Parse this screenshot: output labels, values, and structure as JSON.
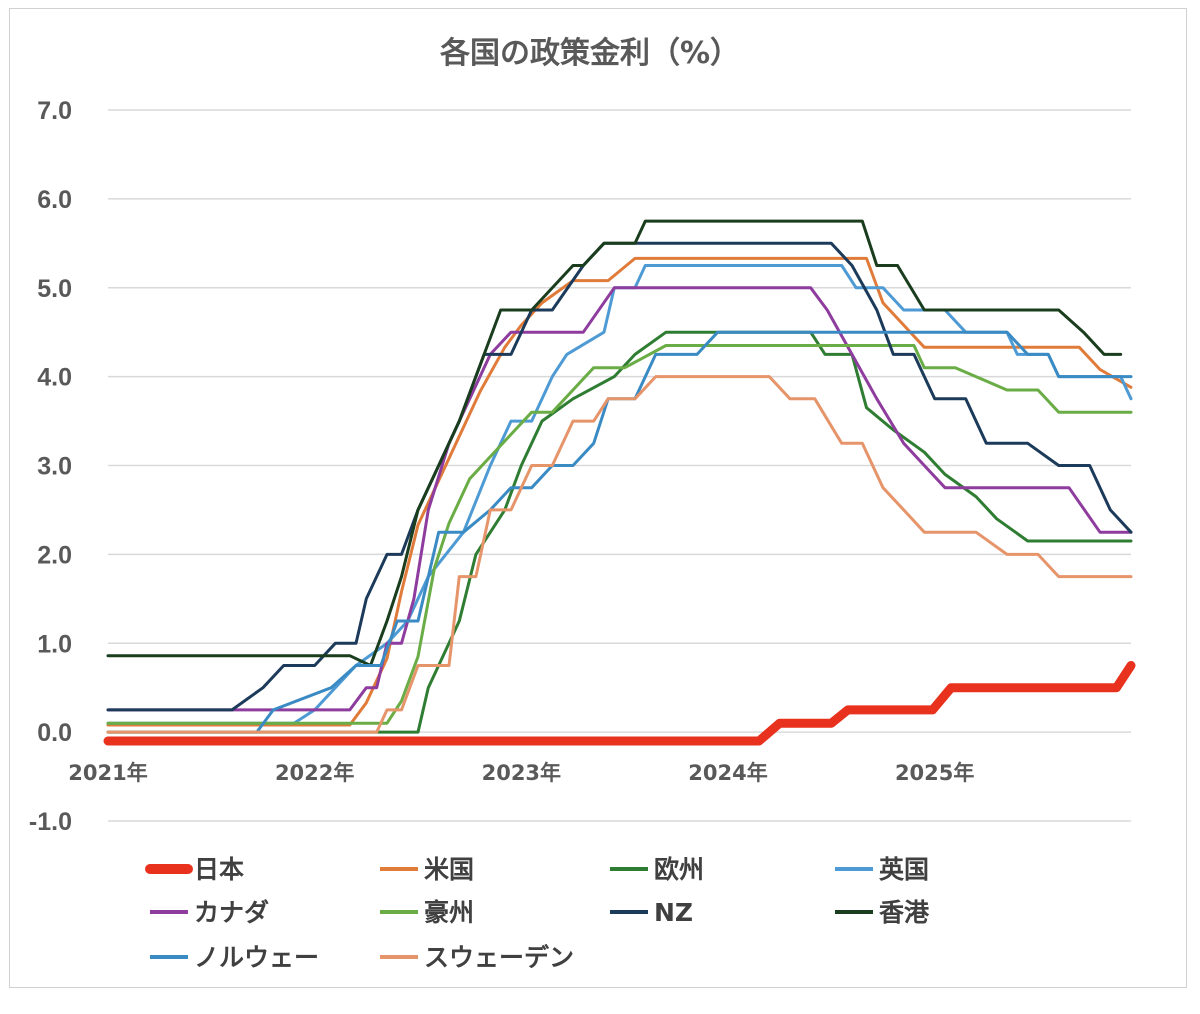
{
  "chart_data": {
    "type": "line",
    "title": "各国の政策金利（%）",
    "xlabel": "",
    "ylabel": "",
    "ylim": [
      -1.0,
      7.0
    ],
    "yticks": [
      "7.0",
      "6.0",
      "5.0",
      "4.0",
      "3.0",
      "2.0",
      "1.0",
      "0.0",
      "-1.0"
    ],
    "xticks": [
      "2021年",
      "2022年",
      "2023年",
      "2024年",
      "2025年"
    ],
    "xlim": [
      2021.0,
      2025.95
    ],
    "grid": true,
    "legend_position": "bottom",
    "series": [
      {
        "name": "日本",
        "color": "#e8321e",
        "width": 9,
        "points": [
          [
            2021.0,
            -0.1
          ],
          [
            2024.15,
            -0.1
          ],
          [
            2024.25,
            0.1
          ],
          [
            2024.5,
            0.1
          ],
          [
            2024.58,
            0.25
          ],
          [
            2024.99,
            0.25
          ],
          [
            2025.08,
            0.5
          ],
          [
            2025.88,
            0.5
          ],
          [
            2025.95,
            0.75
          ]
        ]
      },
      {
        "name": "米国",
        "color": "#e07b3a",
        "width": 3,
        "points": [
          [
            2021.0,
            0.08
          ],
          [
            2022.17,
            0.08
          ],
          [
            2022.25,
            0.33
          ],
          [
            2022.35,
            0.83
          ],
          [
            2022.42,
            1.58
          ],
          [
            2022.5,
            2.33
          ],
          [
            2022.65,
            3.08
          ],
          [
            2022.8,
            3.83
          ],
          [
            2022.92,
            4.33
          ],
          [
            2023.0,
            4.58
          ],
          [
            2023.1,
            4.83
          ],
          [
            2023.25,
            5.08
          ],
          [
            2023.42,
            5.08
          ],
          [
            2023.55,
            5.33
          ],
          [
            2024.67,
            5.33
          ],
          [
            2024.75,
            4.83
          ],
          [
            2024.85,
            4.58
          ],
          [
            2024.95,
            4.33
          ],
          [
            2025.7,
            4.33
          ],
          [
            2025.8,
            4.08
          ],
          [
            2025.95,
            3.88
          ]
        ]
      },
      {
        "name": "欧州",
        "color": "#2e7d32",
        "width": 3,
        "points": [
          [
            2021.0,
            0.0
          ],
          [
            2022.25,
            0.0
          ],
          [
            2022.5,
            0.0
          ],
          [
            2022.55,
            0.5
          ],
          [
            2022.7,
            1.25
          ],
          [
            2022.78,
            2.0
          ],
          [
            2022.92,
            2.5
          ],
          [
            2023.0,
            3.0
          ],
          [
            2023.1,
            3.5
          ],
          [
            2023.25,
            3.75
          ],
          [
            2023.45,
            4.0
          ],
          [
            2023.55,
            4.25
          ],
          [
            2023.7,
            4.5
          ],
          [
            2024.4,
            4.5
          ],
          [
            2024.47,
            4.25
          ],
          [
            2024.6,
            4.25
          ],
          [
            2024.67,
            3.65
          ],
          [
            2024.8,
            3.4
          ],
          [
            2024.95,
            3.15
          ],
          [
            2025.05,
            2.9
          ],
          [
            2025.2,
            2.65
          ],
          [
            2025.3,
            2.4
          ],
          [
            2025.45,
            2.15
          ],
          [
            2025.95,
            2.15
          ]
        ]
      },
      {
        "name": "英国",
        "color": "#4e9ad4",
        "width": 3,
        "points": [
          [
            2021.0,
            0.1
          ],
          [
            2021.9,
            0.1
          ],
          [
            2022.0,
            0.25
          ],
          [
            2022.1,
            0.5
          ],
          [
            2022.2,
            0.75
          ],
          [
            2022.35,
            1.0
          ],
          [
            2022.45,
            1.25
          ],
          [
            2022.55,
            1.75
          ],
          [
            2022.72,
            2.25
          ],
          [
            2022.85,
            3.0
          ],
          [
            2022.95,
            3.5
          ],
          [
            2023.05,
            3.5
          ],
          [
            2023.15,
            4.0
          ],
          [
            2023.22,
            4.25
          ],
          [
            2023.4,
            4.5
          ],
          [
            2023.45,
            5.0
          ],
          [
            2023.55,
            5.0
          ],
          [
            2023.6,
            5.25
          ],
          [
            2024.55,
            5.25
          ],
          [
            2024.62,
            5.0
          ],
          [
            2024.75,
            5.0
          ],
          [
            2024.85,
            4.75
          ],
          [
            2025.05,
            4.75
          ],
          [
            2025.15,
            4.5
          ],
          [
            2025.35,
            4.5
          ],
          [
            2025.4,
            4.25
          ],
          [
            2025.55,
            4.25
          ],
          [
            2025.6,
            4.0
          ],
          [
            2025.9,
            4.0
          ],
          [
            2025.95,
            3.75
          ]
        ]
      },
      {
        "name": "カナダ",
        "color": "#8e3c9e",
        "width": 3,
        "points": [
          [
            2021.0,
            0.25
          ],
          [
            2022.17,
            0.25
          ],
          [
            2022.25,
            0.5
          ],
          [
            2022.3,
            0.5
          ],
          [
            2022.35,
            1.0
          ],
          [
            2022.42,
            1.0
          ],
          [
            2022.48,
            1.5
          ],
          [
            2022.55,
            2.5
          ],
          [
            2022.65,
            3.25
          ],
          [
            2022.75,
            3.75
          ],
          [
            2022.85,
            4.25
          ],
          [
            2022.95,
            4.5
          ],
          [
            2023.3,
            4.5
          ],
          [
            2023.45,
            5.0
          ],
          [
            2024.4,
            5.0
          ],
          [
            2024.48,
            4.75
          ],
          [
            2024.6,
            4.25
          ],
          [
            2024.72,
            3.75
          ],
          [
            2024.85,
            3.25
          ],
          [
            2024.95,
            3.0
          ],
          [
            2025.05,
            2.75
          ],
          [
            2025.65,
            2.75
          ],
          [
            2025.8,
            2.25
          ],
          [
            2025.95,
            2.25
          ]
        ]
      },
      {
        "name": "豪州",
        "color": "#6aac45",
        "width": 3,
        "points": [
          [
            2021.0,
            0.1
          ],
          [
            2022.35,
            0.1
          ],
          [
            2022.42,
            0.35
          ],
          [
            2022.5,
            0.85
          ],
          [
            2022.58,
            1.85
          ],
          [
            2022.65,
            2.35
          ],
          [
            2022.75,
            2.85
          ],
          [
            2022.85,
            3.1
          ],
          [
            2022.95,
            3.35
          ],
          [
            2023.05,
            3.6
          ],
          [
            2023.15,
            3.6
          ],
          [
            2023.35,
            4.1
          ],
          [
            2023.5,
            4.1
          ],
          [
            2023.7,
            4.35
          ],
          [
            2024.9,
            4.35
          ],
          [
            2024.95,
            4.1
          ],
          [
            2025.1,
            4.1
          ],
          [
            2025.35,
            3.85
          ],
          [
            2025.5,
            3.85
          ],
          [
            2025.6,
            3.6
          ],
          [
            2025.95,
            3.6
          ]
        ]
      },
      {
        "name": "NZ",
        "color": "#1c3a5a",
        "width": 3,
        "points": [
          [
            2021.0,
            0.25
          ],
          [
            2021.6,
            0.25
          ],
          [
            2021.75,
            0.5
          ],
          [
            2021.85,
            0.75
          ],
          [
            2022.0,
            0.75
          ],
          [
            2022.1,
            1.0
          ],
          [
            2022.2,
            1.0
          ],
          [
            2022.25,
            1.5
          ],
          [
            2022.35,
            2.0
          ],
          [
            2022.42,
            2.0
          ],
          [
            2022.5,
            2.5
          ],
          [
            2022.6,
            3.0
          ],
          [
            2022.7,
            3.5
          ],
          [
            2022.82,
            4.25
          ],
          [
            2022.95,
            4.25
          ],
          [
            2023.05,
            4.75
          ],
          [
            2023.15,
            4.75
          ],
          [
            2023.3,
            5.25
          ],
          [
            2023.4,
            5.5
          ],
          [
            2024.5,
            5.5
          ],
          [
            2024.6,
            5.25
          ],
          [
            2024.72,
            4.75
          ],
          [
            2024.8,
            4.25
          ],
          [
            2024.9,
            4.25
          ],
          [
            2025.0,
            3.75
          ],
          [
            2025.15,
            3.75
          ],
          [
            2025.25,
            3.25
          ],
          [
            2025.45,
            3.25
          ],
          [
            2025.6,
            3.0
          ],
          [
            2025.75,
            3.0
          ],
          [
            2025.85,
            2.5
          ],
          [
            2025.95,
            2.25
          ]
        ]
      },
      {
        "name": "香港",
        "color": "#1a3d1e",
        "width": 3,
        "points": [
          [
            2021.0,
            0.86
          ],
          [
            2022.17,
            0.86
          ],
          [
            2022.27,
            0.75
          ],
          [
            2022.35,
            1.25
          ],
          [
            2022.42,
            1.75
          ],
          [
            2022.5,
            2.5
          ],
          [
            2022.6,
            3.0
          ],
          [
            2022.7,
            3.5
          ],
          [
            2022.82,
            4.25
          ],
          [
            2022.9,
            4.75
          ],
          [
            2023.05,
            4.75
          ],
          [
            2023.25,
            5.25
          ],
          [
            2023.3,
            5.25
          ],
          [
            2023.4,
            5.5
          ],
          [
            2023.55,
            5.5
          ],
          [
            2023.6,
            5.75
          ],
          [
            2024.65,
            5.75
          ],
          [
            2024.72,
            5.25
          ],
          [
            2024.82,
            5.25
          ],
          [
            2024.95,
            4.75
          ],
          [
            2025.6,
            4.75
          ],
          [
            2025.72,
            4.5
          ],
          [
            2025.82,
            4.25
          ],
          [
            2025.9,
            4.25
          ]
        ]
      },
      {
        "name": "ノルウェー",
        "color": "#3a8ac4",
        "width": 3,
        "points": [
          [
            2021.0,
            0.0
          ],
          [
            2021.72,
            0.0
          ],
          [
            2021.8,
            0.25
          ],
          [
            2022.08,
            0.5
          ],
          [
            2022.2,
            0.75
          ],
          [
            2022.32,
            0.75
          ],
          [
            2022.4,
            1.25
          ],
          [
            2022.5,
            1.25
          ],
          [
            2022.6,
            2.25
          ],
          [
            2022.72,
            2.25
          ],
          [
            2022.85,
            2.5
          ],
          [
            2022.95,
            2.75
          ],
          [
            2023.05,
            2.75
          ],
          [
            2023.15,
            3.0
          ],
          [
            2023.25,
            3.0
          ],
          [
            2023.35,
            3.25
          ],
          [
            2023.42,
            3.75
          ],
          [
            2023.55,
            3.75
          ],
          [
            2023.65,
            4.25
          ],
          [
            2023.85,
            4.25
          ],
          [
            2023.95,
            4.5
          ],
          [
            2025.35,
            4.5
          ],
          [
            2025.45,
            4.25
          ],
          [
            2025.55,
            4.25
          ],
          [
            2025.6,
            4.0
          ],
          [
            2025.8,
            4.0
          ],
          [
            2025.95,
            4.0
          ]
        ]
      },
      {
        "name": "スウェーデン",
        "color": "#e6946a",
        "width": 3,
        "points": [
          [
            2021.0,
            0.0
          ],
          [
            2022.3,
            0.0
          ],
          [
            2022.35,
            0.25
          ],
          [
            2022.42,
            0.25
          ],
          [
            2022.5,
            0.75
          ],
          [
            2022.65,
            0.75
          ],
          [
            2022.7,
            1.75
          ],
          [
            2022.78,
            1.75
          ],
          [
            2022.85,
            2.5
          ],
          [
            2022.95,
            2.5
          ],
          [
            2023.05,
            3.0
          ],
          [
            2023.15,
            3.0
          ],
          [
            2023.25,
            3.5
          ],
          [
            2023.35,
            3.5
          ],
          [
            2023.42,
            3.75
          ],
          [
            2023.55,
            3.75
          ],
          [
            2023.65,
            4.0
          ],
          [
            2024.2,
            4.0
          ],
          [
            2024.3,
            3.75
          ],
          [
            2024.42,
            3.75
          ],
          [
            2024.55,
            3.25
          ],
          [
            2024.65,
            3.25
          ],
          [
            2024.75,
            2.75
          ],
          [
            2024.85,
            2.5
          ],
          [
            2024.95,
            2.25
          ],
          [
            2025.2,
            2.25
          ],
          [
            2025.35,
            2.0
          ],
          [
            2025.5,
            2.0
          ],
          [
            2025.6,
            1.75
          ],
          [
            2025.95,
            1.75
          ]
        ]
      }
    ]
  }
}
